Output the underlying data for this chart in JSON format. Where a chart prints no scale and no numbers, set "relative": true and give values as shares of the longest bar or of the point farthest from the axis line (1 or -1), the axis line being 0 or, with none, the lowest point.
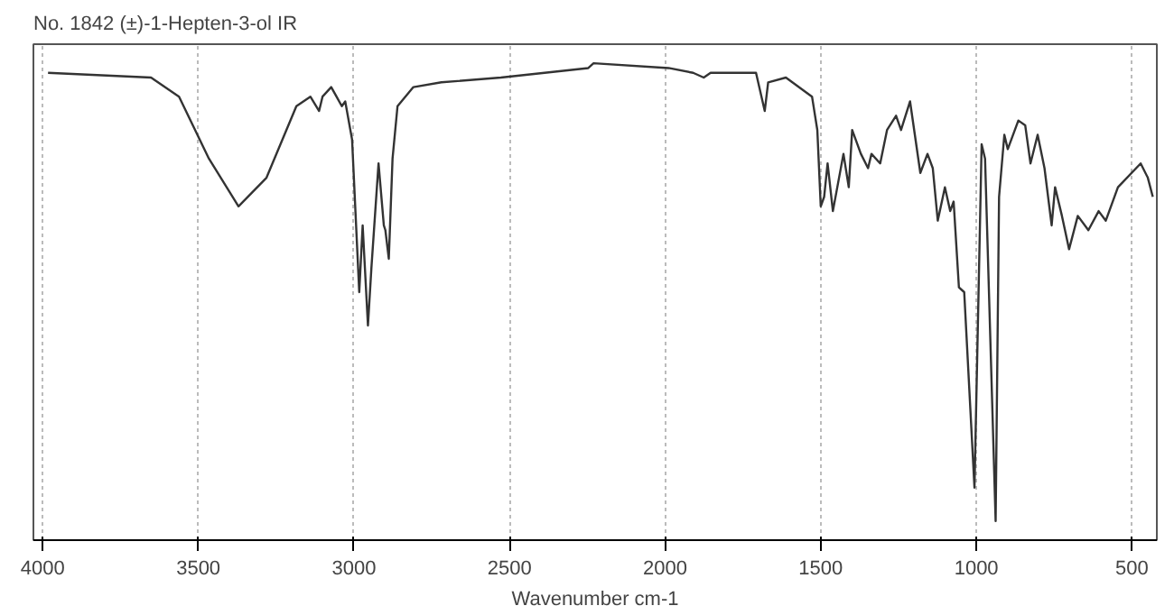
{
  "chart_data": {
    "type": "line",
    "title": "No. 1842 (±)-1-Hepten-3-ol IR",
    "xlabel": "Wavenumber cm-1",
    "relative": true,
    "xlim": [
      4030,
      420
    ],
    "xticks": [
      4000,
      3500,
      3000,
      2500,
      2000,
      1500,
      1000,
      500
    ],
    "grid": "x",
    "x": [
      3983,
      3652,
      3562,
      3466,
      3371,
      3281,
      3185,
      3140,
      3112,
      3101,
      3073,
      3056,
      3039,
      3028,
      3006,
      2983,
      2972,
      2955,
      2944,
      2921,
      2904,
      2899,
      2888,
      2876,
      2860,
      2809,
      2719,
      2528,
      2247,
      2230,
      1989,
      1910,
      1876,
      1854,
      1708,
      1680,
      1669,
      1612,
      1528,
      1511,
      1500,
      1489,
      1478,
      1461,
      1427,
      1410,
      1399,
      1371,
      1348,
      1337,
      1309,
      1287,
      1258,
      1242,
      1213,
      1180,
      1157,
      1140,
      1124,
      1101,
      1084,
      1073,
      1056,
      1039,
      1006,
      983,
      972,
      938,
      927,
      910,
      899,
      865,
      843,
      826,
      803,
      781,
      758,
      747,
      725,
      702,
      674,
      640,
      607,
      584,
      545,
      472,
      449,
      433
    ],
    "series": [
      {
        "color": "#333333",
        "values": [
          0.98,
          0.97,
          0.93,
          0.8,
          0.7,
          0.76,
          0.91,
          0.93,
          0.9,
          0.93,
          0.95,
          0.93,
          0.91,
          0.92,
          0.84,
          0.52,
          0.66,
          0.45,
          0.57,
          0.79,
          0.66,
          0.65,
          0.59,
          0.8,
          0.91,
          0.95,
          0.96,
          0.97,
          0.99,
          1.0,
          0.99,
          0.98,
          0.97,
          0.98,
          0.98,
          0.9,
          0.96,
          0.97,
          0.93,
          0.86,
          0.7,
          0.72,
          0.79,
          0.69,
          0.81,
          0.74,
          0.86,
          0.81,
          0.78,
          0.81,
          0.79,
          0.86,
          0.89,
          0.86,
          0.92,
          0.77,
          0.81,
          0.78,
          0.67,
          0.74,
          0.69,
          0.71,
          0.53,
          0.52,
          0.11,
          0.83,
          0.8,
          0.04,
          0.72,
          0.85,
          0.82,
          0.88,
          0.87,
          0.79,
          0.85,
          0.78,
          0.66,
          0.74,
          0.68,
          0.61,
          0.68,
          0.65,
          0.69,
          0.67,
          0.74,
          0.79,
          0.76,
          0.72
        ]
      }
    ]
  }
}
